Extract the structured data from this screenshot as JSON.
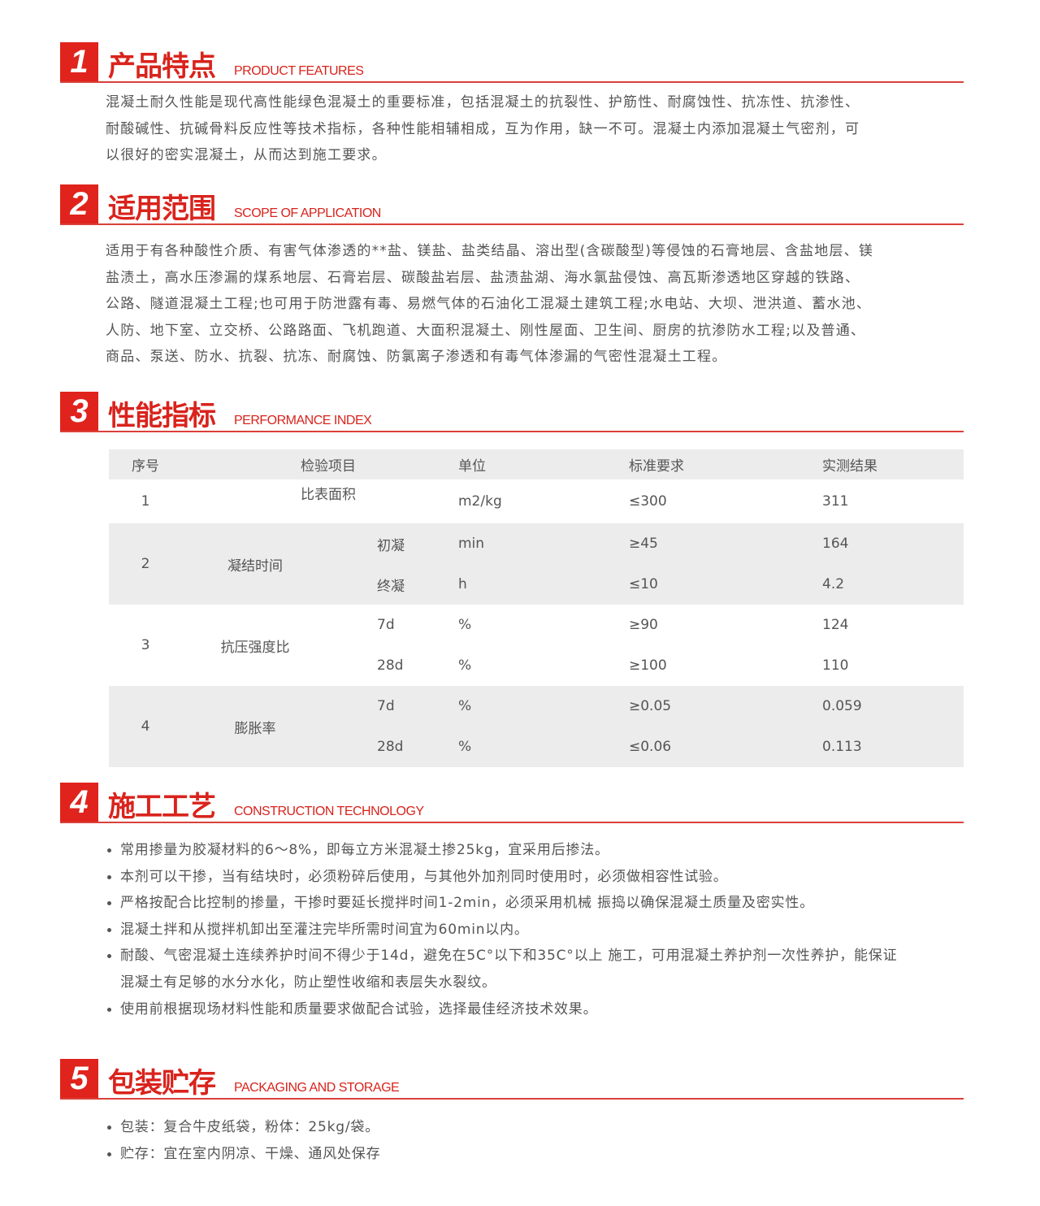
{
  "accent_color": "#e0231c",
  "sections": [
    {
      "num": "1",
      "title_cn": "产品特点",
      "title_en": "PRODUCT FEATURES",
      "lines": [
        "混凝土耐久性能是现代高性能绿色混凝土的重要标准，包括混凝土的抗裂性、护筋性、耐腐蚀性、抗冻性、抗渗性、",
        "耐酸碱性、抗碱骨料反应性等技术指标，各种性能相辅相成，互为作用，缺一不可。混凝土内添加混凝土气密剂，可",
        "以很好的密实混凝土，从而达到施工要求。"
      ]
    },
    {
      "num": "2",
      "title_cn": "适用范围",
      "title_en": "SCOPE OF APPLICATION",
      "lines": [
        "适用于有各种酸性介质、有害气体渗透的**盐、镁盐、盐类结晶、溶出型(含碳酸型)等侵蚀的石膏地层、含盐地层、镁",
        "盐渍土，高水压渗漏的煤系地层、石膏岩层、碳酸盐岩层、盐渍盐湖、海水氯盐侵蚀、高瓦斯渗透地区穿越的铁路、",
        "公路、隧道混凝土工程;也可用于防泄露有毒、易燃气体的石油化工混凝土建筑工程;水电站、大坝、泄洪道、蓄水池、",
        "人防、地下室、立交桥、公路路面、飞机跑道、大面积混凝土、刚性屋面、卫生间、厨房的抗渗防水工程;以及普通、",
        "商品、泵送、防水、抗裂、抗冻、耐腐蚀、防氯离子渗透和有毒气体渗漏的气密性混凝土工程。"
      ]
    },
    {
      "num": "3",
      "title_cn": "性能指标",
      "title_en": "PERFORMANCE INDEX"
    },
    {
      "num": "4",
      "title_cn": "施工工艺",
      "title_en": "CONSTRUCTION TECHNOLOGY",
      "bullets": [
        [
          "常用掺量为胶凝材料的6～8%，即每立方米混凝土掺25kg，宜采用后掺法。"
        ],
        [
          "本剂可以干掺，当有结块时，必须粉碎后使用，与其他外加剂同时使用时，必须做相容性试验。"
        ],
        [
          "严格按配合比控制的掺量，干掺时要延长搅拌时间1-2min，必须采用机械 振捣以确保混凝土质量及密实性。"
        ],
        [
          "混凝土拌和从搅拌机卸出至灌注完毕所需时间宜为60min以内。"
        ],
        [
          "耐酸、气密混凝土连续养护时间不得少于14d，避免在5C°以下和35C°以上 施工，可用混凝土养护剂一次性养护，能保证",
          "混凝土有足够的水分水化，防止塑性收缩和表层失水裂纹。"
        ],
        [
          "使用前根据现场材料性能和质量要求做配合试验，选择最佳经济技术效果。"
        ]
      ]
    },
    {
      "num": "5",
      "title_cn": "包装贮存",
      "title_en": "PACKAGING AND STORAGE",
      "bullets": [
        [
          "包装：复合牛皮纸袋，粉体：25kg/袋。"
        ],
        [
          "贮存：宜在室内阴凉、干燥、通风处保存"
        ]
      ]
    }
  ],
  "table": {
    "headers": [
      "序号",
      "检验项目",
      "单位",
      "标准要求",
      "实测结果"
    ],
    "rows": [
      {
        "no": "1",
        "item": "比表面积",
        "sub": "",
        "unit": "m2/kg",
        "std": "≤300",
        "result": "311"
      },
      {
        "no": "2",
        "item": "凝结时间",
        "sub": "初凝",
        "unit": "min",
        "std": "≥45",
        "result": "164"
      },
      {
        "no": "",
        "item": "",
        "sub": "终凝",
        "unit": "h",
        "std": "≤10",
        "result": "4.2"
      },
      {
        "no": "3",
        "item": "抗压强度比",
        "sub": "7d",
        "unit": "%",
        "std": "≥90",
        "result": "124"
      },
      {
        "no": "",
        "item": "",
        "sub": "28d",
        "unit": "%",
        "std": "≥100",
        "result": "110"
      },
      {
        "no": "4",
        "item": "膨胀率",
        "sub": "7d",
        "unit": "%",
        "std": "≥0.05",
        "result": "0.059"
      },
      {
        "no": "",
        "item": "",
        "sub": "28d",
        "unit": "%",
        "std": "≤0.06",
        "result": "0.113"
      }
    ]
  }
}
